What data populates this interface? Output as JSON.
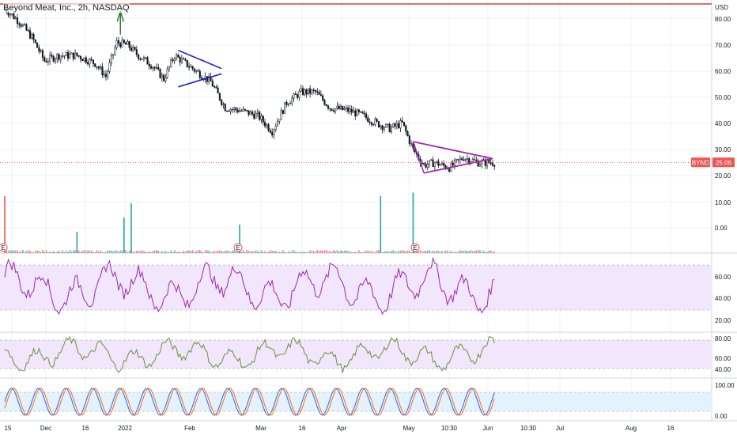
{
  "header": {
    "title": "Beyond Meat, Inc., 2h, NASDAQ"
  },
  "colors": {
    "candle": "#131722",
    "grid": "#eef0f4",
    "resistance": "#e53935",
    "pennant1": "#1e22c8",
    "pennant2": "#9c27b0",
    "last_price": "#ef5350",
    "vol_up": "#26a69a",
    "vol_down": "#ef5350",
    "rsi_line": "#9c27b0",
    "rsi_band": "#f1e6fb",
    "osc2_line": "#6b8f3a",
    "osc2_band": "#f1e6fb",
    "stoch_k": "#2962ff",
    "stoch_d": "#ff6d00",
    "stoch_band": "#e3f2fd"
  },
  "chart_data": {
    "type": "candlestick",
    "ticker": "BYND",
    "interval": "2h",
    "exchange": "NASDAQ",
    "currency": "USD",
    "last_price": "25.06",
    "price_ticks": [
      "80.00",
      "70.00",
      "60.00",
      "50.00",
      "40.00",
      "30.00",
      "20.00"
    ],
    "volume_ticks": [
      "10.00",
      "0.00"
    ],
    "rsi_ticks": [
      "60.00",
      "40.00",
      "20.00"
    ],
    "osc2_ticks": [
      "80.00",
      "60.00",
      "40.00"
    ],
    "stoch_ticks": [
      "100.00",
      "0.00"
    ],
    "time_labels": [
      "15",
      "Dec",
      "16",
      "2022",
      "Feb",
      "Mar",
      "16",
      "Apr",
      "May",
      "10:30",
      "Jun",
      "10:30",
      "Jul",
      "Aug",
      "16"
    ],
    "price_path": [
      {
        "i": 0,
        "p": 84
      },
      {
        "i": 8,
        "p": 79
      },
      {
        "i": 15,
        "p": 73
      },
      {
        "i": 22,
        "p": 64
      },
      {
        "i": 30,
        "p": 66
      },
      {
        "i": 40,
        "p": 66
      },
      {
        "i": 50,
        "p": 63
      },
      {
        "i": 56,
        "p": 58
      },
      {
        "i": 62,
        "p": 71
      },
      {
        "i": 68,
        "p": 70
      },
      {
        "i": 74,
        "p": 66
      },
      {
        "i": 82,
        "p": 62
      },
      {
        "i": 88,
        "p": 57
      },
      {
        "i": 94,
        "p": 66
      },
      {
        "i": 100,
        "p": 63
      },
      {
        "i": 106,
        "p": 60
      },
      {
        "i": 114,
        "p": 56
      },
      {
        "i": 122,
        "p": 46
      },
      {
        "i": 130,
        "p": 45
      },
      {
        "i": 140,
        "p": 43
      },
      {
        "i": 148,
        "p": 37
      },
      {
        "i": 156,
        "p": 48
      },
      {
        "i": 164,
        "p": 52
      },
      {
        "i": 172,
        "p": 52
      },
      {
        "i": 180,
        "p": 46
      },
      {
        "i": 190,
        "p": 45
      },
      {
        "i": 198,
        "p": 43
      },
      {
        "i": 206,
        "p": 40
      },
      {
        "i": 213,
        "p": 38
      },
      {
        "i": 220,
        "p": 40
      },
      {
        "i": 226,
        "p": 30
      },
      {
        "i": 232,
        "p": 24
      },
      {
        "i": 238,
        "p": 25
      },
      {
        "i": 246,
        "p": 23
      },
      {
        "i": 254,
        "p": 27
      },
      {
        "i": 262,
        "p": 25
      }
    ],
    "resistance_level": 86,
    "last_price_value": 25.06,
    "pennant_1": {
      "upper": [
        {
          "i": 96,
          "p": 68
        },
        {
          "i": 120,
          "p": 61
        }
      ],
      "lower": [
        {
          "i": 96,
          "p": 54
        },
        {
          "i": 120,
          "p": 59
        }
      ]
    },
    "pennant_2": {
      "upper": [
        {
          "i": 226,
          "p": 33
        },
        {
          "i": 270,
          "p": 26.5
        }
      ],
      "lower": [
        {
          "i": 232,
          "p": 21
        },
        {
          "i": 270,
          "p": 26.5
        }
      ],
      "left": [
        {
          "i": 226,
          "p": 33
        },
        {
          "i": 232,
          "p": 21
        }
      ]
    },
    "volume_spikes": [
      {
        "i": 0,
        "v": 16,
        "up": false
      },
      {
        "i": 40,
        "v": 6,
        "up": true
      },
      {
        "i": 66,
        "v": 10,
        "up": true
      },
      {
        "i": 70,
        "v": 14,
        "up": true
      },
      {
        "i": 130,
        "v": 8,
        "up": true
      },
      {
        "i": 208,
        "v": 16,
        "up": true
      },
      {
        "i": 226,
        "v": 17,
        "up": true
      }
    ],
    "earnings_markers": [
      0,
      130,
      228
    ]
  }
}
